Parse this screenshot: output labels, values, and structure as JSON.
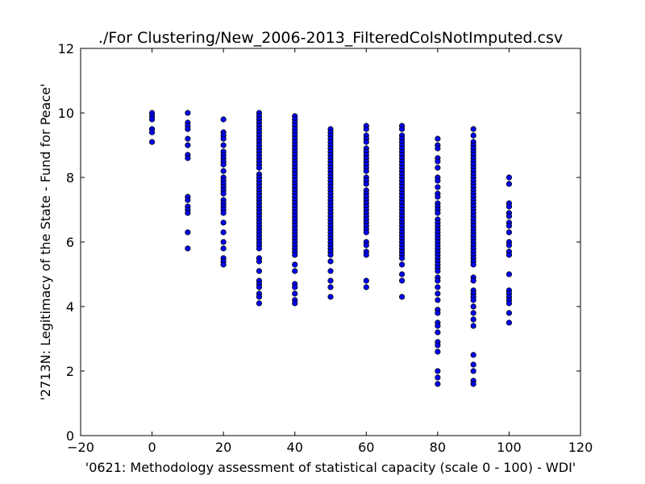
{
  "chart_data": {
    "type": "scatter",
    "title": "./For Clustering/New_2006-2013_FilteredColsNotImputed.csv",
    "xlabel": "'0621: Methodology assessment of statistical capacity  (scale 0 - 100) - WDI'",
    "ylabel": "'2713N: Legitimacy of the State - Fund for Peace'",
    "xlim": [
      -20,
      120
    ],
    "ylim": [
      0,
      12
    ],
    "xticks": [
      -20,
      0,
      20,
      40,
      60,
      80,
      100,
      120
    ],
    "yticks": [
      0,
      2,
      4,
      6,
      8,
      10,
      12
    ],
    "grid": false,
    "marker_color": "#0000ff",
    "groups": [
      {
        "x": 0,
        "y": [
          10.0,
          9.9,
          9.8,
          9.5,
          9.4,
          9.1
        ]
      },
      {
        "x": 10,
        "y": [
          10.0,
          9.7,
          9.6,
          9.5,
          9.2,
          9.0,
          8.7,
          8.6,
          7.4,
          7.3,
          7.1,
          7.0,
          6.9,
          6.3,
          5.8
        ]
      },
      {
        "x": 20,
        "y": [
          9.8,
          9.4,
          9.3,
          9.2,
          9.0,
          8.8,
          8.7,
          8.6,
          8.5,
          8.4,
          8.2,
          8.0,
          7.9,
          7.8,
          7.7,
          7.6,
          7.5,
          7.3,
          7.2,
          7.1,
          7.0,
          6.9,
          6.6,
          6.3,
          6.0,
          5.8,
          5.5,
          5.4,
          5.3
        ]
      },
      {
        "x": 30,
        "y": [
          10.0,
          9.9,
          9.8,
          9.7,
          9.6,
          9.5,
          9.4,
          9.3,
          9.2,
          9.1,
          9.0,
          8.9,
          8.8,
          8.7,
          8.6,
          8.5,
          8.4,
          8.3,
          8.1,
          8.0,
          7.9,
          7.8,
          7.7,
          7.6,
          7.5,
          7.4,
          7.3,
          7.2,
          7.1,
          7.0,
          6.9,
          6.8,
          6.7,
          6.6,
          6.5,
          6.4,
          6.3,
          6.2,
          6.1,
          6.0,
          5.9,
          5.8,
          5.5,
          5.4,
          5.1,
          4.8,
          4.7,
          4.6,
          4.4,
          4.3,
          4.1
        ]
      },
      {
        "x": 40,
        "y": [
          9.9,
          9.8,
          9.7,
          9.6,
          9.5,
          9.4,
          9.3,
          9.2,
          9.1,
          9.0,
          8.9,
          8.8,
          8.7,
          8.6,
          8.5,
          8.4,
          8.3,
          8.2,
          8.1,
          8.0,
          7.9,
          7.8,
          7.7,
          7.6,
          7.5,
          7.4,
          7.3,
          7.2,
          7.1,
          7.0,
          6.9,
          6.8,
          6.7,
          6.6,
          6.5,
          6.4,
          6.3,
          6.2,
          6.1,
          6.0,
          5.9,
          5.8,
          5.7,
          5.6,
          5.3,
          5.1,
          4.7,
          4.6,
          4.4,
          4.2,
          4.1
        ]
      },
      {
        "x": 50,
        "y": [
          9.5,
          9.4,
          9.3,
          9.2,
          9.1,
          9.0,
          8.9,
          8.8,
          8.7,
          8.6,
          8.5,
          8.4,
          8.3,
          8.2,
          8.1,
          8.0,
          7.9,
          7.8,
          7.7,
          7.6,
          7.5,
          7.4,
          7.3,
          7.2,
          7.1,
          7.0,
          6.9,
          6.8,
          6.7,
          6.6,
          6.5,
          6.4,
          6.3,
          6.2,
          6.1,
          6.0,
          5.9,
          5.8,
          5.7,
          5.6,
          5.4,
          5.1,
          4.8,
          4.6,
          4.3
        ]
      },
      {
        "x": 60,
        "y": [
          9.6,
          9.5,
          9.3,
          9.2,
          9.1,
          8.9,
          8.8,
          8.7,
          8.6,
          8.5,
          8.4,
          8.3,
          8.2,
          8.0,
          7.9,
          7.8,
          7.6,
          7.5,
          7.4,
          7.3,
          7.2,
          7.1,
          7.0,
          6.9,
          6.8,
          6.7,
          6.6,
          6.5,
          6.4,
          6.3,
          6.0,
          5.9,
          5.7,
          5.6,
          4.8,
          4.6
        ]
      },
      {
        "x": 70,
        "y": [
          9.6,
          9.5,
          9.3,
          9.2,
          9.1,
          9.0,
          8.9,
          8.8,
          8.7,
          8.6,
          8.5,
          8.4,
          8.3,
          8.2,
          8.1,
          8.0,
          7.9,
          7.8,
          7.7,
          7.6,
          7.5,
          7.4,
          7.3,
          7.2,
          7.1,
          7.0,
          6.9,
          6.8,
          6.7,
          6.6,
          6.5,
          6.4,
          6.3,
          6.2,
          6.1,
          6.0,
          5.9,
          5.8,
          5.7,
          5.6,
          5.5,
          5.3,
          5.0,
          4.8,
          4.3
        ]
      },
      {
        "x": 80,
        "y": [
          9.2,
          9.0,
          8.9,
          8.6,
          8.5,
          8.3,
          8.0,
          7.9,
          7.7,
          7.5,
          7.4,
          7.2,
          7.1,
          7.0,
          6.9,
          6.7,
          6.6,
          6.5,
          6.4,
          6.3,
          6.2,
          6.1,
          6.0,
          5.9,
          5.8,
          5.7,
          5.6,
          5.5,
          5.4,
          5.3,
          5.2,
          5.1,
          4.9,
          4.8,
          4.6,
          4.4,
          4.2,
          3.9,
          3.8,
          3.5,
          3.4,
          3.2,
          2.9,
          2.8,
          2.6,
          2.0,
          1.8,
          1.6
        ]
      },
      {
        "x": 90,
        "y": [
          9.5,
          9.3,
          9.1,
          9.0,
          8.9,
          8.8,
          8.7,
          8.6,
          8.5,
          8.4,
          8.3,
          8.2,
          8.1,
          8.0,
          7.9,
          7.8,
          7.7,
          7.6,
          7.5,
          7.4,
          7.3,
          7.2,
          7.1,
          7.0,
          6.9,
          6.8,
          6.7,
          6.6,
          6.5,
          6.4,
          6.3,
          6.2,
          6.1,
          6.0,
          5.9,
          5.8,
          5.7,
          5.6,
          5.5,
          5.4,
          5.3,
          4.9,
          4.8,
          4.5,
          4.4,
          4.3,
          4.2,
          4.0,
          3.8,
          3.6,
          3.4,
          2.5,
          2.2,
          2.0,
          1.7,
          1.6
        ]
      },
      {
        "x": 100,
        "y": [
          8.0,
          7.8,
          7.2,
          7.1,
          6.9,
          6.8,
          6.6,
          6.5,
          6.3,
          6.0,
          5.9,
          5.7,
          5.6,
          5.0,
          4.5,
          4.4,
          4.3,
          4.2,
          4.1,
          3.8,
          3.5
        ]
      }
    ]
  }
}
